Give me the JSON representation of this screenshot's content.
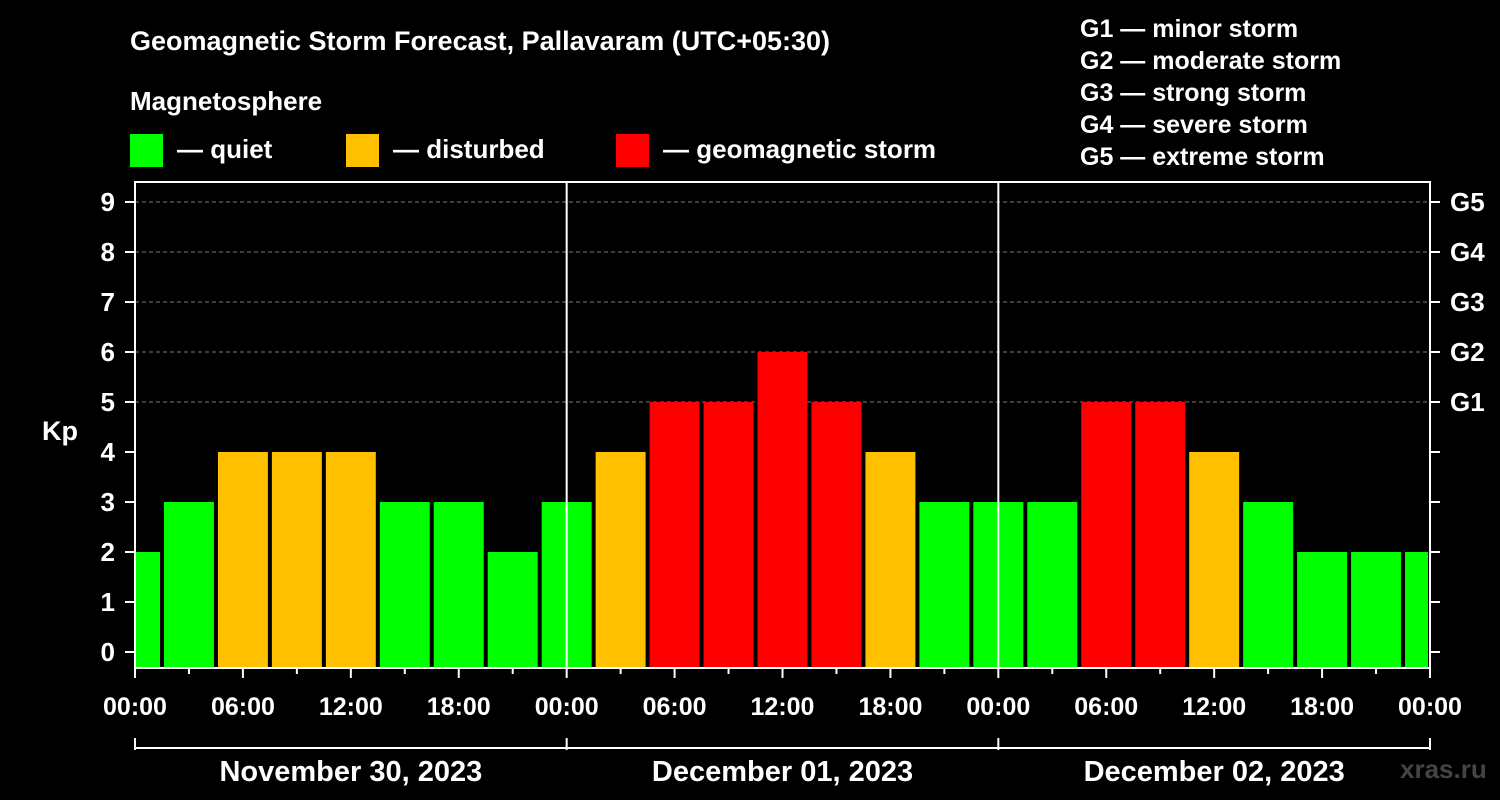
{
  "title": "Geomagnetic Storm Forecast, Pallavaram (UTC+05:30)",
  "legend": {
    "heading": "Magnetosphere",
    "items": [
      {
        "key": "quiet",
        "label": "— quiet",
        "color": "#00ff00"
      },
      {
        "key": "disturbed",
        "label": "— disturbed",
        "color": "#ffc000"
      },
      {
        "key": "storm",
        "label": "— geomagnetic storm",
        "color": "#ff0000"
      }
    ]
  },
  "g_scale": [
    "G1 — minor storm",
    "G2 — moderate storm",
    "G3 — strong storm",
    "G4 — severe storm",
    "G5 — extreme storm"
  ],
  "watermark": "xras.ru",
  "chart_data": {
    "type": "bar",
    "ylabel": "Kp",
    "ylim": [
      0,
      9
    ],
    "y_ticks": [
      "0",
      "1",
      "2",
      "3",
      "4",
      "5",
      "6",
      "7",
      "8",
      "9"
    ],
    "right_ticks": [
      {
        "value": 5,
        "label": "G1"
      },
      {
        "value": 6,
        "label": "G2"
      },
      {
        "value": 7,
        "label": "G3"
      },
      {
        "value": 8,
        "label": "G4"
      },
      {
        "value": 9,
        "label": "G5"
      }
    ],
    "x_tick_labels": [
      "00:00",
      "06:00",
      "12:00",
      "18:00",
      "00:00",
      "06:00",
      "12:00",
      "18:00",
      "00:00",
      "06:00",
      "12:00",
      "18:00",
      "00:00"
    ],
    "days": [
      "November 30, 2023",
      "December 01, 2023",
      "December 02, 2023"
    ],
    "interval_hours": 3,
    "values": [
      2,
      3,
      4,
      4,
      4,
      3,
      3,
      2,
      3,
      4,
      5,
      5,
      6,
      5,
      4,
      3,
      3,
      3,
      5,
      5,
      4,
      3,
      2,
      2,
      2
    ],
    "grid": "horizontal dashed at 5-9",
    "colors": {
      "quiet": "#00ff00",
      "disturbed": "#ffc000",
      "storm": "#ff0000"
    }
  }
}
